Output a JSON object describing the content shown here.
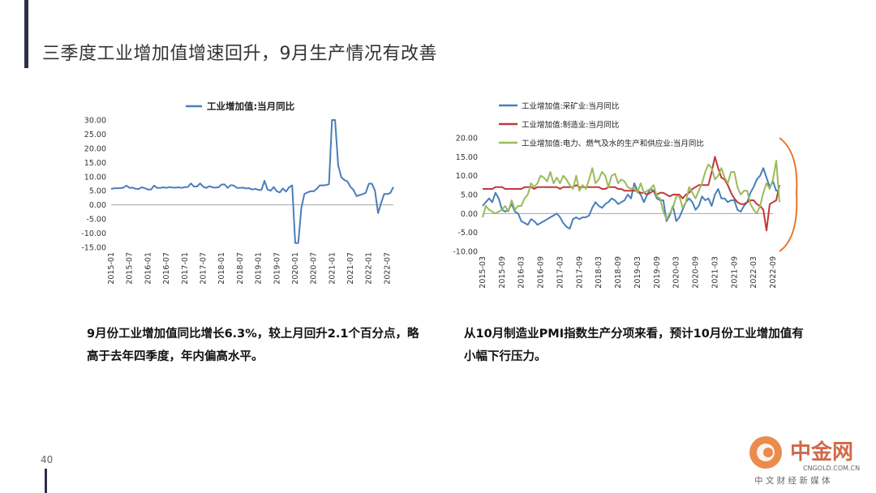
{
  "page": {
    "title": "三季度工业增加值增速回升，9月生产情况有改善",
    "page_number": "40"
  },
  "captions": {
    "left": "9月份工业增加值同比增长6.3%，较上月回升2.1个百分点，略高于去年四季度，年内偏高水平。",
    "right": "从10月制造业PMI指数生产分项来看，预计10月份工业增加值有小幅下行压力。"
  },
  "watermark": {
    "name": "中金网",
    "url": "CNGOLD.COM.CN",
    "tagline": "中 文 财 经 新 媒 体"
  },
  "chart_data": [
    {
      "type": "line",
      "legend_position": "top",
      "ylim": [
        -15,
        30
      ],
      "yticks": [
        "30.00",
        "25.00",
        "20.00",
        "15.00",
        "10.00",
        "5.00",
        "0.00",
        "-5.00",
        "-10.00",
        "-15.00"
      ],
      "xticks": [
        "2015-01",
        "2015-07",
        "2016-01",
        "2016-07",
        "2017-01",
        "2017-07",
        "2018-01",
        "2018-07",
        "2019-01",
        "2019-07",
        "2020-01",
        "2020-07",
        "2021-01",
        "2021-07",
        "2022-01",
        "2022-07"
      ],
      "x_start": "2015-01",
      "x_end": "2022-09",
      "series": [
        {
          "name": "工业增加值:当月同比",
          "color": "#4a7ebb",
          "values": [
            5.6,
            5.9,
            5.9,
            5.9,
            6.1,
            6.8,
            6.0,
            6.1,
            5.7,
            5.6,
            6.2,
            5.9,
            5.4,
            5.4,
            6.8,
            6.0,
            6.0,
            6.2,
            6.0,
            6.3,
            6.1,
            6.1,
            6.2,
            6.0,
            6.3,
            6.3,
            7.6,
            6.5,
            6.5,
            7.6,
            6.4,
            6.0,
            6.6,
            6.2,
            6.1,
            6.2,
            7.2,
            7.2,
            6.0,
            7.0,
            6.8,
            6.0,
            6.0,
            6.1,
            5.8,
            5.9,
            5.4,
            5.7,
            5.3,
            5.3,
            8.5,
            5.4,
            5.0,
            6.3,
            4.8,
            4.4,
            5.8,
            4.7,
            6.2,
            6.9,
            -13.5,
            -13.5,
            -1.1,
            3.9,
            4.4,
            4.8,
            4.8,
            5.6,
            6.9,
            6.9,
            7.0,
            7.3,
            30.0,
            30.0,
            14.1,
            9.8,
            8.8,
            8.3,
            6.4,
            5.3,
            3.1,
            3.5,
            3.8,
            4.3,
            7.5,
            7.5,
            5.0,
            -2.9,
            0.7,
            3.9,
            3.8,
            4.2,
            6.3
          ]
        }
      ]
    },
    {
      "type": "line",
      "legend_position": "top-left",
      "ylim": [
        -10,
        20
      ],
      "yticks": [
        "20.00",
        "15.00",
        "10.00",
        "5.00",
        "0.00",
        "-5.00",
        "-10.00"
      ],
      "xticks": [
        "2015-03",
        "2015-09",
        "2016-03",
        "2016-09",
        "2017-03",
        "2017-09",
        "2018-03",
        "2018-09",
        "2019-03",
        "2019-09",
        "2020-03",
        "2020-09",
        "2021-03",
        "2021-09",
        "2022-03",
        "2022-09"
      ],
      "x_start": "2015-03",
      "x_end": "2022-09",
      "series": [
        {
          "name": "工业增加值:采矿业:当月同比",
          "color": "#4a7ebb",
          "values": [
            2.0,
            3.0,
            4.0,
            3.0,
            5.5,
            4.0,
            1.0,
            0.5,
            1.0,
            2.5,
            0.5,
            0.0,
            -2.0,
            -2.5,
            -3.0,
            -1.5,
            -2.0,
            -3.0,
            -2.5,
            -2.0,
            -1.5,
            -1.0,
            -0.5,
            0.0,
            -1.0,
            -2.5,
            -3.5,
            -4.0,
            -1.5,
            -1.0,
            -1.5,
            -1.0,
            -1.0,
            -0.5,
            1.5,
            3.0,
            2.0,
            1.5,
            2.5,
            3.0,
            4.0,
            3.5,
            2.5,
            3.0,
            3.5,
            5.0,
            4.0,
            8.0,
            6.0,
            5.0,
            3.0,
            5.0,
            6.5,
            6.0,
            4.0,
            3.5,
            3.5,
            -2.0,
            -0.5,
            2.0,
            -2.0,
            -1.0,
            1.0,
            3.0,
            4.0,
            3.0,
            1.0,
            2.0,
            4.5,
            3.5,
            4.0,
            2.0,
            5.0,
            6.5,
            4.0,
            4.0,
            3.0,
            3.5,
            3.5,
            1.0,
            0.5,
            2.0,
            3.0,
            5.5,
            7.0,
            9.0,
            10.0,
            12.0,
            9.5,
            7.0,
            8.5,
            6.0,
            6.0
          ]
        },
        {
          "name": "工业增加值:制造业:当月同比",
          "color": "#c0393b",
          "values": [
            6.5,
            6.5,
            6.5,
            6.5,
            7.0,
            7.0,
            7.0,
            6.5,
            6.5,
            6.5,
            6.5,
            6.5,
            6.5,
            7.0,
            7.0,
            7.0,
            6.5,
            7.0,
            7.0,
            7.0,
            7.0,
            7.0,
            7.0,
            7.0,
            6.5,
            7.0,
            7.0,
            7.0,
            7.0,
            7.5,
            7.0,
            7.0,
            7.0,
            7.0,
            7.0,
            7.0,
            7.0,
            6.5,
            6.5,
            7.0,
            7.0,
            7.0,
            6.5,
            6.5,
            6.0,
            6.0,
            6.0,
            6.0,
            6.0,
            5.5,
            5.5,
            5.0,
            5.5,
            6.0,
            5.0,
            5.5,
            5.5,
            5.0,
            4.5,
            5.0,
            5.0,
            5.0,
            4.0,
            5.0,
            5.5,
            6.5,
            7.0,
            7.5,
            7.5,
            7.5,
            7.5,
            11.0,
            15.0,
            12.0,
            9.5,
            9.0,
            7.5,
            5.5,
            4.0,
            3.0,
            2.5,
            2.5,
            3.0,
            3.5,
            3.5,
            2.5,
            2.0,
            1.0,
            -4.5,
            2.5,
            3.0,
            3.5,
            7.5
          ]
        },
        {
          "name": "工业增加值:电力、燃气及水的生产和供应业:当月同比",
          "color": "#9bbb59",
          "values": [
            -1.0,
            2.0,
            1.0,
            0.5,
            0.0,
            0.5,
            1.0,
            2.0,
            0.5,
            3.5,
            1.0,
            2.0,
            2.0,
            4.0,
            5.0,
            8.0,
            7.0,
            8.0,
            10.0,
            9.5,
            8.5,
            11.0,
            8.0,
            9.5,
            8.0,
            10.0,
            9.0,
            7.5,
            6.5,
            10.0,
            6.0,
            7.5,
            6.5,
            9.0,
            12.0,
            8.0,
            9.0,
            11.0,
            10.0,
            7.0,
            10.0,
            10.5,
            8.0,
            9.0,
            8.5,
            7.0,
            6.5,
            7.0,
            5.5,
            8.0,
            5.5,
            6.0,
            6.5,
            7.5,
            4.5,
            4.0,
            0.5,
            -1.5,
            0.0,
            1.5,
            4.5,
            4.5,
            1.5,
            3.0,
            7.0,
            5.5,
            4.0,
            6.0,
            8.0,
            11.0,
            13.0,
            12.0,
            9.0,
            10.0,
            12.0,
            9.5,
            8.0,
            11.0,
            11.0,
            7.0,
            5.0,
            6.0,
            6.0,
            2.5,
            1.0,
            0.0,
            2.0,
            5.5,
            8.0,
            6.5,
            9.0,
            14.0,
            3.0
          ]
        }
      ]
    }
  ]
}
